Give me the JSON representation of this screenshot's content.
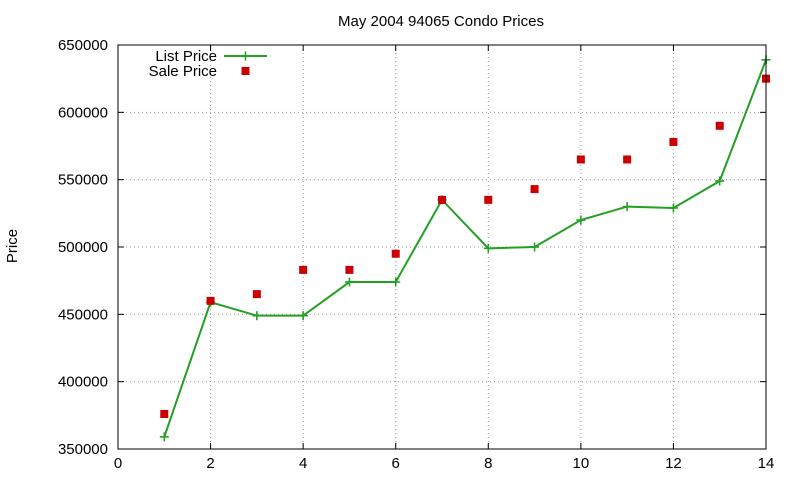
{
  "chart_data": {
    "type": "line",
    "title": "May 2004 94065 Condo Prices",
    "xlabel": "",
    "ylabel": "Price",
    "xlim": [
      0,
      14
    ],
    "ylim": [
      350000,
      650000
    ],
    "x_ticks": [
      "0",
      "2",
      "4",
      "6",
      "8",
      "10",
      "12",
      "14"
    ],
    "y_ticks": [
      "350000",
      "400000",
      "450000",
      "500000",
      "550000",
      "600000",
      "650000"
    ],
    "grid": true,
    "legend_position": "top-left",
    "series": [
      {
        "name": "List Price",
        "kind": "line",
        "marker": "plus",
        "color": "#22a022",
        "x": [
          1,
          2,
          3,
          4,
          5,
          6,
          7,
          8,
          9,
          10,
          11,
          12,
          13,
          14
        ],
        "y": [
          359000,
          459000,
          449000,
          449000,
          474000,
          474000,
          535000,
          499000,
          500000,
          520000,
          530000,
          529000,
          549000,
          639000
        ]
      },
      {
        "name": "Sale Price",
        "kind": "scatter",
        "marker": "square",
        "color": "#cc0000",
        "x": [
          1,
          2,
          3,
          4,
          5,
          6,
          7,
          8,
          9,
          10,
          11,
          12,
          13,
          14
        ],
        "y": [
          376000,
          460000,
          465000,
          483000,
          483000,
          495000,
          535000,
          535000,
          543000,
          565000,
          565000,
          578000,
          590000,
          625000
        ]
      }
    ]
  }
}
